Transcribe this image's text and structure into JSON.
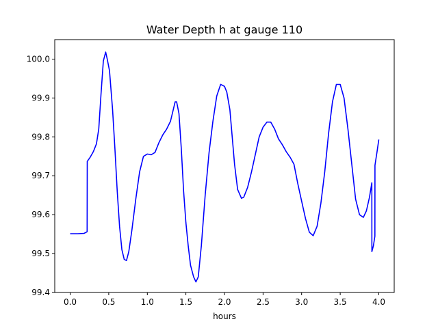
{
  "chart_data": {
    "type": "line",
    "title": "Water Depth h at gauge 110",
    "xlabel": "hours",
    "ylabel": "",
    "xlim": [
      -0.2,
      4.2
    ],
    "ylim": [
      99.4,
      100.05
    ],
    "x_ticks": [
      0.0,
      0.5,
      1.0,
      1.5,
      2.0,
      2.5,
      3.0,
      3.5,
      4.0
    ],
    "x_tick_labels": [
      "0.0",
      "0.5",
      "1.0",
      "1.5",
      "2.0",
      "2.5",
      "3.0",
      "3.5",
      "4.0"
    ],
    "y_ticks": [
      99.4,
      99.5,
      99.6,
      99.7,
      99.8,
      99.9,
      100.0
    ],
    "y_tick_labels": [
      "99.4",
      "99.5",
      "99.6",
      "99.7",
      "99.8",
      "99.9",
      "100.0"
    ],
    "grid": false,
    "legend": "none",
    "series": [
      {
        "color": "#0000ff",
        "points": [
          [
            0.0,
            99.551
          ],
          [
            0.1,
            99.551
          ],
          [
            0.18,
            99.552
          ],
          [
            0.22,
            99.556
          ],
          [
            0.221,
            99.737
          ],
          [
            0.26,
            99.748
          ],
          [
            0.3,
            99.762
          ],
          [
            0.34,
            99.782
          ],
          [
            0.37,
            99.82
          ],
          [
            0.4,
            99.91
          ],
          [
            0.43,
            99.995
          ],
          [
            0.46,
            100.018
          ],
          [
            0.48,
            100.0
          ],
          [
            0.51,
            99.97
          ],
          [
            0.55,
            99.87
          ],
          [
            0.58,
            99.77
          ],
          [
            0.61,
            99.66
          ],
          [
            0.64,
            99.57
          ],
          [
            0.67,
            99.51
          ],
          [
            0.7,
            99.485
          ],
          [
            0.73,
            99.482
          ],
          [
            0.76,
            99.505
          ],
          [
            0.8,
            99.56
          ],
          [
            0.85,
            99.64
          ],
          [
            0.9,
            99.71
          ],
          [
            0.95,
            99.75
          ],
          [
            1.0,
            99.756
          ],
          [
            1.05,
            99.754
          ],
          [
            1.1,
            99.76
          ],
          [
            1.15,
            99.785
          ],
          [
            1.2,
            99.805
          ],
          [
            1.25,
            99.82
          ],
          [
            1.3,
            99.84
          ],
          [
            1.33,
            99.865
          ],
          [
            1.36,
            99.89
          ],
          [
            1.38,
            99.89
          ],
          [
            1.41,
            99.86
          ],
          [
            1.44,
            99.77
          ],
          [
            1.47,
            99.66
          ],
          [
            1.5,
            99.58
          ],
          [
            1.53,
            99.52
          ],
          [
            1.56,
            99.47
          ],
          [
            1.6,
            99.44
          ],
          [
            1.63,
            99.427
          ],
          [
            1.66,
            99.44
          ],
          [
            1.7,
            99.52
          ],
          [
            1.75,
            99.65
          ],
          [
            1.8,
            99.76
          ],
          [
            1.85,
            99.84
          ],
          [
            1.9,
            99.905
          ],
          [
            1.95,
            99.935
          ],
          [
            2.0,
            99.93
          ],
          [
            2.03,
            99.915
          ],
          [
            2.07,
            99.87
          ],
          [
            2.1,
            99.8
          ],
          [
            2.13,
            99.73
          ],
          [
            2.17,
            99.665
          ],
          [
            2.22,
            99.642
          ],
          [
            2.25,
            99.645
          ],
          [
            2.3,
            99.67
          ],
          [
            2.35,
            99.71
          ],
          [
            2.4,
            99.755
          ],
          [
            2.45,
            99.8
          ],
          [
            2.5,
            99.825
          ],
          [
            2.55,
            99.838
          ],
          [
            2.6,
            99.838
          ],
          [
            2.65,
            99.82
          ],
          [
            2.7,
            99.795
          ],
          [
            2.75,
            99.78
          ],
          [
            2.8,
            99.762
          ],
          [
            2.85,
            99.748
          ],
          [
            2.9,
            99.73
          ],
          [
            2.95,
            99.68
          ],
          [
            3.0,
            99.635
          ],
          [
            3.05,
            99.59
          ],
          [
            3.1,
            99.555
          ],
          [
            3.15,
            99.546
          ],
          [
            3.2,
            99.57
          ],
          [
            3.25,
            99.63
          ],
          [
            3.3,
            99.71
          ],
          [
            3.35,
            99.81
          ],
          [
            3.4,
            99.89
          ],
          [
            3.45,
            99.935
          ],
          [
            3.5,
            99.935
          ],
          [
            3.55,
            99.9
          ],
          [
            3.6,
            99.82
          ],
          [
            3.65,
            99.73
          ],
          [
            3.7,
            99.64
          ],
          [
            3.75,
            99.6
          ],
          [
            3.8,
            99.593
          ],
          [
            3.84,
            99.61
          ],
          [
            3.88,
            99.645
          ],
          [
            3.91,
            99.682
          ],
          [
            3.911,
            99.505
          ],
          [
            3.93,
            99.52
          ],
          [
            3.95,
            99.545
          ],
          [
            3.951,
            99.727
          ],
          [
            3.98,
            99.765
          ],
          [
            4.0,
            99.793
          ]
        ]
      }
    ]
  }
}
